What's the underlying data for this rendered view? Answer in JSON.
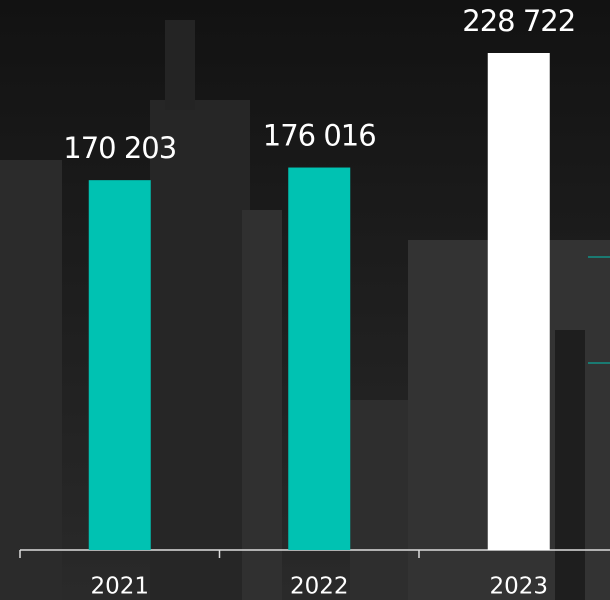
{
  "chart_data": {
    "type": "bar",
    "categories": [
      "2021",
      "2022",
      "2023"
    ],
    "values": [
      170203,
      176016,
      228722
    ],
    "value_labels": [
      "170 203",
      "176 016",
      "228 722"
    ],
    "colors": [
      "#00c2b2",
      "#00c2b2",
      "#ffffff"
    ]
  }
}
